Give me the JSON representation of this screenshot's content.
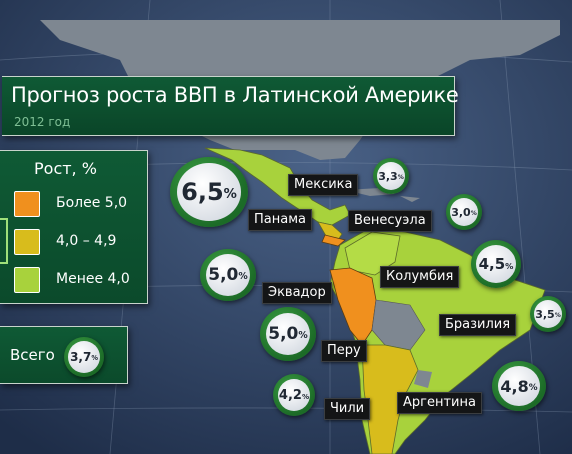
{
  "title": "Прогноз роста ВВП в Латинской Америке",
  "subtitle": "2012 год",
  "legend": {
    "title": "Рост, %",
    "items": [
      {
        "label": "Более 5,0",
        "color": "#f0901e"
      },
      {
        "label": "4,0 – 4,9",
        "color": "#d8bc1c"
      },
      {
        "label": "Менее 4,0",
        "color": "#a8d23c"
      }
    ]
  },
  "total": {
    "label": "Всего",
    "value": "3,7",
    "unit": "%"
  },
  "countries": {
    "mexico": {
      "name": "Мексика",
      "value": "3,3",
      "unit": "%"
    },
    "panama": {
      "name": "Панама",
      "value": "6,5",
      "unit": "%"
    },
    "venezuela": {
      "name": "Венесуэла",
      "value": "3,0",
      "unit": "%"
    },
    "colombia": {
      "name": "Колумбия",
      "value": "4,5",
      "unit": "%"
    },
    "ecuador": {
      "name": "Эквадор",
      "value": "5,0",
      "unit": "%"
    },
    "peru": {
      "name": "Перу",
      "value": "5,0",
      "unit": "%"
    },
    "brazil": {
      "name": "Бразилия",
      "value": "3,5",
      "unit": "%"
    },
    "chile": {
      "name": "Чили",
      "value": "4,2",
      "unit": "%"
    },
    "argentina": {
      "name": "Аргентина",
      "value": "4,8",
      "unit": "%"
    }
  },
  "colors": {
    "ocean": "#2c3f5e",
    "land_neutral": "#7d8590",
    "panel_green": "#0f5a35",
    "bubble_green": "#2a8a36"
  }
}
